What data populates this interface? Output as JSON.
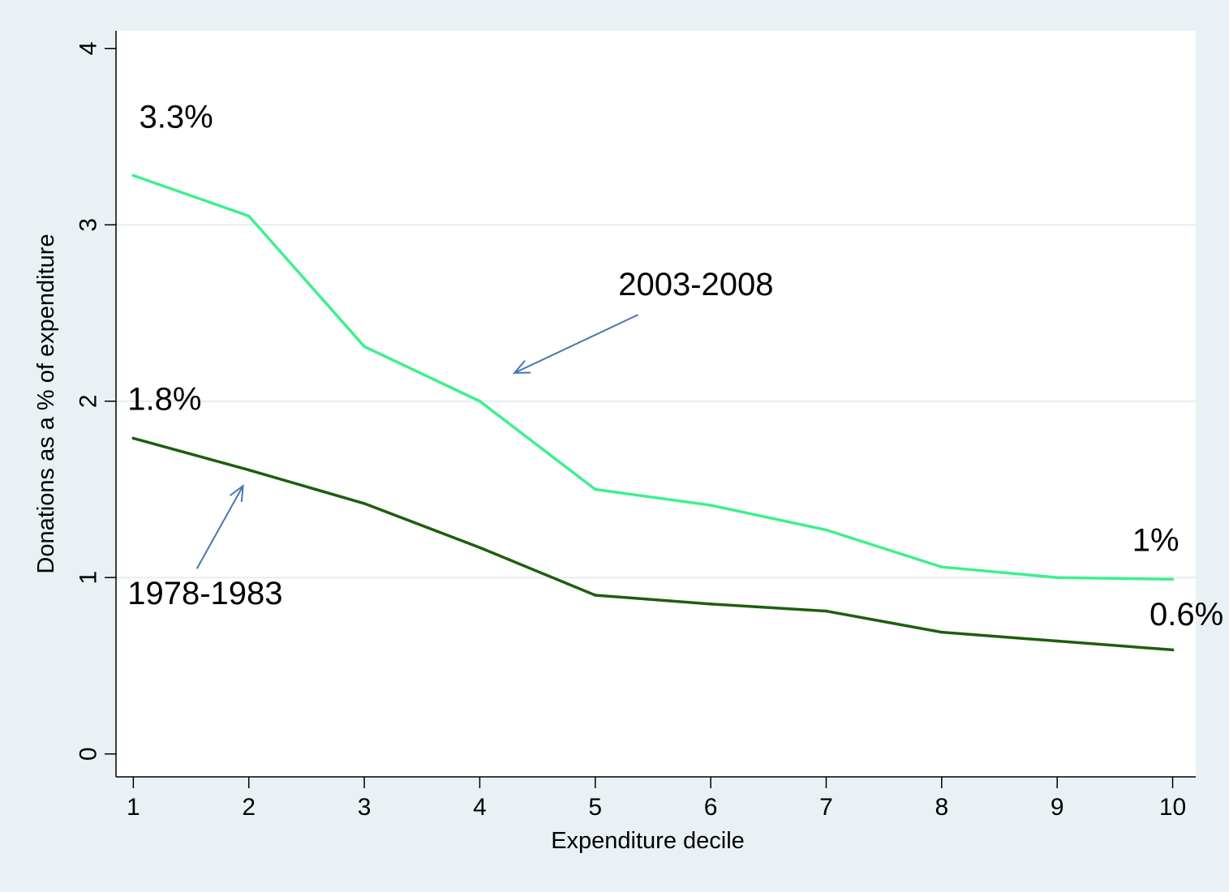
{
  "chart_data": {
    "type": "line",
    "title": "",
    "xlabel": "Expenditure decile",
    "ylabel": "Donations as a % of expenditure",
    "x": [
      1,
      2,
      3,
      4,
      5,
      6,
      7,
      8,
      9,
      10
    ],
    "xlim": [
      0.85,
      10.2
    ],
    "ylim": [
      -0.13,
      4.1
    ],
    "xticks": [
      "1",
      "2",
      "3",
      "4",
      "5",
      "6",
      "7",
      "8",
      "9",
      "10"
    ],
    "yticks": [
      "0",
      "1",
      "2",
      "3",
      "4"
    ],
    "grid": "horizontal",
    "series": [
      {
        "name": "2003-2008",
        "color": "#3ef08c",
        "values": [
          3.28,
          3.05,
          2.31,
          2.0,
          1.5,
          1.41,
          1.27,
          1.06,
          1.0,
          0.99
        ]
      },
      {
        "name": "1978-1983",
        "color": "#1e5e0e",
        "values": [
          1.79,
          1.61,
          1.42,
          1.17,
          0.9,
          0.85,
          0.81,
          0.69,
          0.64,
          0.59
        ]
      }
    ],
    "annotations": [
      {
        "text": "3.3%",
        "x": 1.05,
        "y": 3.55
      },
      {
        "text": "1.8%",
        "x": 0.95,
        "y": 1.95
      },
      {
        "text": "1%",
        "x": 9.65,
        "y": 1.15
      },
      {
        "text": "0.6%",
        "x": 9.8,
        "y": 0.73
      },
      {
        "text": "2003-2008",
        "x": 5.2,
        "y": 2.6
      },
      {
        "text": "1978-1983",
        "x": 0.95,
        "y": 0.85
      }
    ],
    "arrows": [
      {
        "from": [
          5.37,
          2.49
        ],
        "to": [
          4.3,
          2.16
        ]
      },
      {
        "from": [
          1.55,
          1.05
        ],
        "to": [
          1.95,
          1.52
        ]
      }
    ]
  }
}
